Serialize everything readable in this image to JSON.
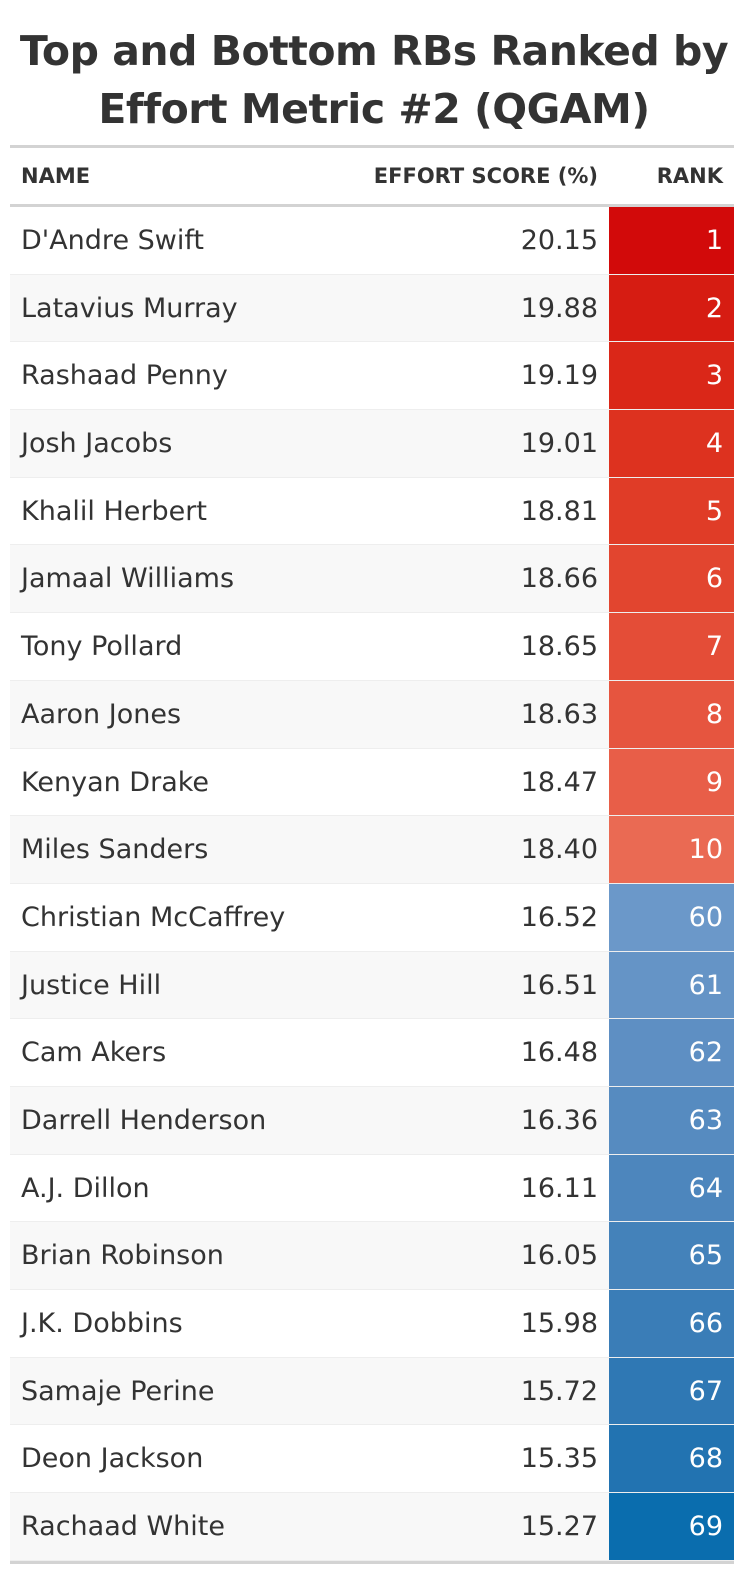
{
  "chart_data": {
    "type": "table",
    "title": "Top and Bottom RBs Ranked by Effort Metric #2 (QGAM)",
    "columns": [
      "NAME",
      "EFFORT SCORE (%)",
      "RANK"
    ],
    "rows": [
      {
        "name": "D'Andre Swift",
        "score": "20.15",
        "rank": "1",
        "color": "#d20a0a"
      },
      {
        "name": "Latavius Murray",
        "score": "19.88",
        "rank": "2",
        "color": "#d61c12"
      },
      {
        "name": "Rashaad Penny",
        "score": "19.19",
        "rank": "3",
        "color": "#da2718"
      },
      {
        "name": "Josh Jacobs",
        "score": "19.01",
        "rank": "4",
        "color": "#dd321f"
      },
      {
        "name": "Khalil Herbert",
        "score": "18.81",
        "rank": "5",
        "color": "#e03c27"
      },
      {
        "name": "Jamaal Williams",
        "score": "18.66",
        "rank": "6",
        "color": "#e2452f"
      },
      {
        "name": "Tony Pollard",
        "score": "18.65",
        "rank": "7",
        "color": "#e44d37"
      },
      {
        "name": "Aaron Jones",
        "score": "18.63",
        "rank": "8",
        "color": "#e6553f"
      },
      {
        "name": "Kenyan Drake",
        "score": "18.47",
        "rank": "9",
        "color": "#e85e48"
      },
      {
        "name": "Miles Sanders",
        "score": "18.40",
        "rank": "10",
        "color": "#ea6a53"
      },
      {
        "name": "Christian McCaffrey",
        "score": "16.52",
        "rank": "60",
        "color": "#6b98c9"
      },
      {
        "name": "Justice Hill",
        "score": "16.51",
        "rank": "61",
        "color": "#6594c6"
      },
      {
        "name": "Cam Akers",
        "score": "16.48",
        "rank": "62",
        "color": "#5e8fc3"
      },
      {
        "name": "Darrell Henderson",
        "score": "16.36",
        "rank": "63",
        "color": "#568bc0"
      },
      {
        "name": "A.J. Dillon",
        "score": "16.11",
        "rank": "64",
        "color": "#4d86bd"
      },
      {
        "name": "Brian Robinson",
        "score": "16.05",
        "rank": "65",
        "color": "#4482ba"
      },
      {
        "name": "J.K. Dobbins",
        "score": "15.98",
        "rank": "66",
        "color": "#3a7db7"
      },
      {
        "name": "Samaje Perine",
        "score": "15.72",
        "rank": "67",
        "color": "#2f78b4"
      },
      {
        "name": "Deon Jackson",
        "score": "15.35",
        "rank": "68",
        "color": "#2273b1"
      },
      {
        "name": "Rachaad White",
        "score": "15.27",
        "rank": "69",
        "color": "#0a6dae"
      }
    ]
  }
}
